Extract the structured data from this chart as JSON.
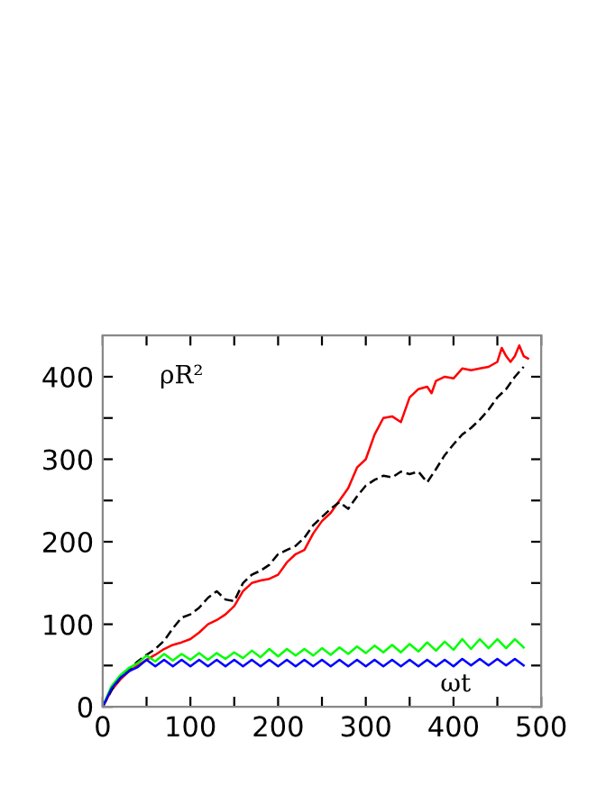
{
  "chart_data": {
    "type": "line",
    "xlabel": "ωt",
    "ylabel": "ρR²",
    "xlim": [
      0,
      500
    ],
    "ylim": [
      0,
      450
    ],
    "xticks": [
      0,
      {
        "value": 50,
        "label": null
      },
      100,
      {
        "value": 150,
        "label": null
      },
      200,
      {
        "value": 250,
        "label": null
      },
      300,
      {
        "value": 350,
        "label": null
      },
      400,
      {
        "value": 450,
        "label": null
      },
      500
    ],
    "yticks": [
      0,
      {
        "value": 50,
        "label": null
      },
      100,
      {
        "value": 150,
        "label": null
      },
      200,
      {
        "value": 250,
        "label": null
      },
      300,
      {
        "value": 350,
        "label": null
      },
      400
    ],
    "grid": false,
    "legend": false,
    "marker": "none",
    "series": [
      {
        "color": "#ff0000",
        "line_style": "solid",
        "x": [
          0,
          10,
          20,
          30,
          40,
          50,
          60,
          70,
          80,
          90,
          100,
          110,
          120,
          130,
          140,
          150,
          160,
          170,
          180,
          190,
          200,
          210,
          220,
          230,
          240,
          250,
          260,
          270,
          280,
          290,
          300,
          310,
          320,
          330,
          340,
          350,
          360,
          370,
          375,
          380,
          390,
          400,
          410,
          420,
          430,
          440,
          450,
          455,
          460,
          465,
          470,
          475,
          480,
          485
        ],
        "values": [
          0,
          20,
          33,
          43,
          50,
          57,
          63,
          70,
          75,
          78,
          82,
          90,
          100,
          105,
          112,
          122,
          140,
          150,
          153,
          155,
          160,
          175,
          185,
          190,
          210,
          225,
          235,
          250,
          265,
          290,
          300,
          330,
          350,
          352,
          345,
          375,
          385,
          388,
          380,
          395,
          400,
          398,
          410,
          408,
          410,
          412,
          418,
          435,
          425,
          418,
          425,
          438,
          425,
          422
        ]
      },
      {
        "color": "#000000",
        "line_style": "dashed",
        "x": [
          0,
          10,
          20,
          30,
          40,
          50,
          60,
          70,
          80,
          90,
          100,
          110,
          120,
          130,
          140,
          150,
          160,
          170,
          180,
          190,
          200,
          210,
          220,
          230,
          240,
          250,
          260,
          270,
          280,
          290,
          300,
          310,
          320,
          330,
          340,
          350,
          360,
          370,
          380,
          390,
          400,
          410,
          420,
          430,
          440,
          450,
          460,
          470,
          480
        ],
        "values": [
          0,
          20,
          35,
          45,
          55,
          63,
          70,
          80,
          95,
          108,
          112,
          120,
          132,
          140,
          130,
          128,
          150,
          160,
          165,
          172,
          185,
          190,
          195,
          205,
          220,
          230,
          240,
          248,
          240,
          255,
          268,
          275,
          280,
          278,
          285,
          282,
          285,
          272,
          288,
          305,
          318,
          330,
          338,
          348,
          360,
          375,
          385,
          400,
          412
        ]
      },
      {
        "color": "#00ff00",
        "line_style": "solid",
        "x": [
          0,
          10,
          20,
          30,
          40,
          50,
          60,
          70,
          80,
          90,
          100,
          110,
          120,
          130,
          140,
          150,
          160,
          170,
          180,
          190,
          200,
          210,
          220,
          230,
          240,
          250,
          260,
          270,
          280,
          290,
          300,
          310,
          320,
          330,
          340,
          350,
          360,
          370,
          380,
          390,
          400,
          410,
          420,
          430,
          440,
          450,
          460,
          470,
          480
        ],
        "values": [
          0,
          25,
          38,
          47,
          53,
          62,
          55,
          64,
          56,
          64,
          57,
          65,
          57,
          65,
          58,
          66,
          59,
          68,
          60,
          70,
          61,
          70,
          62,
          70,
          62,
          71,
          63,
          72,
          64,
          73,
          65,
          74,
          66,
          75,
          66,
          76,
          67,
          78,
          68,
          79,
          69,
          82,
          70,
          82,
          71,
          82,
          71,
          82,
          72
        ]
      },
      {
        "color": "#0000ff",
        "line_style": "solid",
        "x": [
          0,
          10,
          20,
          30,
          40,
          50,
          60,
          70,
          80,
          90,
          100,
          110,
          120,
          130,
          140,
          150,
          160,
          170,
          180,
          190,
          200,
          210,
          220,
          230,
          240,
          250,
          260,
          270,
          280,
          290,
          300,
          310,
          320,
          330,
          340,
          350,
          360,
          370,
          380,
          390,
          400,
          410,
          420,
          430,
          440,
          450,
          460,
          470,
          480
        ],
        "values": [
          0,
          22,
          35,
          43,
          48,
          57,
          49,
          57,
          49,
          57,
          49,
          57,
          49,
          57,
          49,
          57,
          49,
          57,
          49,
          57,
          49,
          57,
          49,
          57,
          49,
          57,
          49,
          57,
          49,
          57,
          49,
          57,
          49,
          57,
          49,
          57,
          49,
          57,
          49,
          57,
          49,
          58,
          50,
          58,
          50,
          58,
          50,
          58,
          50
        ]
      }
    ]
  }
}
